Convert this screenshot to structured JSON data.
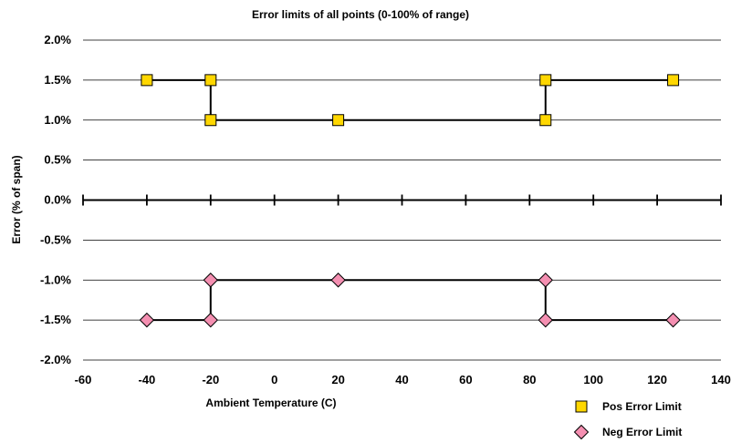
{
  "chart_data": {
    "type": "line",
    "title": "Error limits of all points (0-100% of range)",
    "xlabel": "Ambient Temperature (C)",
    "ylabel": "Error (% of span)",
    "xlim": [
      -60,
      140
    ],
    "ylim": [
      -2.0,
      2.0
    ],
    "x_ticks": [
      -60,
      -40,
      -20,
      0,
      20,
      40,
      60,
      80,
      100,
      120,
      140
    ],
    "x_tick_labels": [
      "-60",
      "-40",
      "-20",
      "0",
      "20",
      "40",
      "60",
      "80",
      "100",
      "120",
      "140"
    ],
    "y_ticks": [
      2.0,
      1.5,
      1.0,
      0.5,
      0.0,
      -0.5,
      -1.0,
      -1.5,
      -2.0
    ],
    "y_tick_labels": [
      "2.0%",
      "1.5%",
      "1.0%",
      "0.5%",
      "0.0%",
      "-0.5%",
      "-1.0%",
      "-1.5%",
      "-2.0%"
    ],
    "grid": "horizontal",
    "legend_position": "bottom-right",
    "series": [
      {
        "name": "Pos Error Limit",
        "marker": "square",
        "color": "#FFD700",
        "x": [
          -40,
          -20,
          -20,
          20,
          85,
          85,
          125
        ],
        "y": [
          1.5,
          1.5,
          1.0,
          1.0,
          1.0,
          1.5,
          1.5
        ]
      },
      {
        "name": "Neg Error Limit",
        "marker": "diamond",
        "color": "#F48FB1",
        "x": [
          -40,
          -20,
          -20,
          20,
          85,
          85,
          125
        ],
        "y": [
          -1.5,
          -1.5,
          -1.0,
          -1.0,
          -1.0,
          -1.5,
          -1.5
        ]
      }
    ]
  }
}
